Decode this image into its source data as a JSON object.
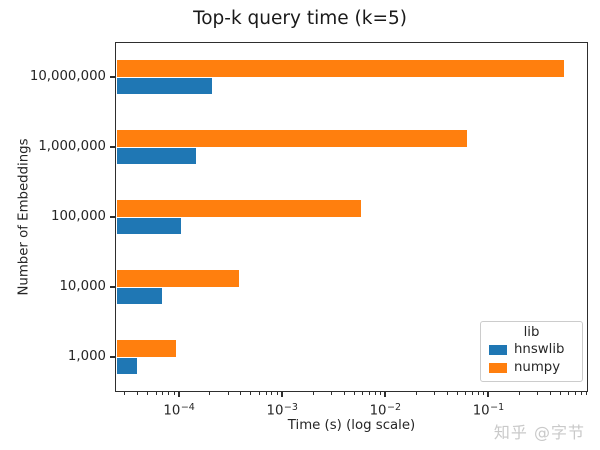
{
  "watermark": {
    "text": "知乎 @字节"
  },
  "chart_data": {
    "type": "bar",
    "orientation": "horizontal",
    "title": "Top-k query time (k=5)",
    "xlabel": "Time (s) (log scale)",
    "ylabel": "Number of Embeddings",
    "x_scale": "log",
    "xlim": [
      2.4e-05,
      0.93
    ],
    "grid": false,
    "categories": [
      "1,000",
      "10,000",
      "100,000",
      "1,000,000",
      "10,000,000"
    ],
    "categories_order": "bottom-to-top",
    "series": [
      {
        "name": "hnswlib",
        "color": "#1f77b4",
        "values": [
          3.9e-05,
          6.8e-05,
          0.000105,
          0.000145,
          0.00021
        ]
      },
      {
        "name": "numpy",
        "color": "#ff7f0e",
        "values": [
          9.3e-05,
          0.00038,
          0.0059,
          0.062,
          0.54
        ]
      }
    ],
    "series_display_order_top_to_bottom": [
      "numpy",
      "hnswlib"
    ],
    "x_ticks": [
      {
        "value": 0.0001,
        "base": "10",
        "exp": "−4"
      },
      {
        "value": 0.001,
        "base": "10",
        "exp": "−3"
      },
      {
        "value": 0.01,
        "base": "10",
        "exp": "−2"
      },
      {
        "value": 0.1,
        "base": "10",
        "exp": "−1"
      }
    ],
    "legend": {
      "title": "lib",
      "position": "lower right"
    }
  }
}
